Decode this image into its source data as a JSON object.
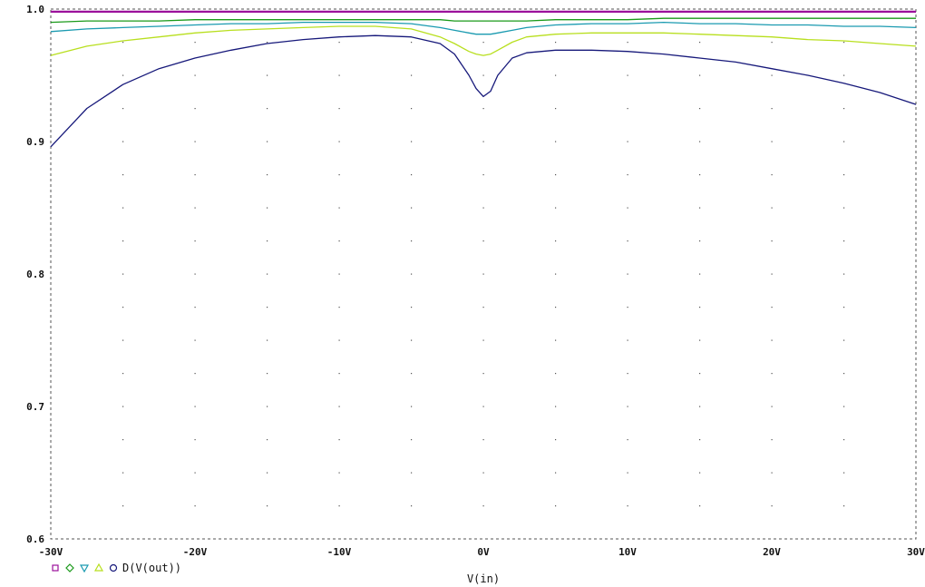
{
  "chart_data": {
    "type": "line",
    "xlabel": "V(in)",
    "ylabel": "",
    "title": "",
    "xlim": [
      -30,
      30
    ],
    "ylim": [
      0.6,
      1.0
    ],
    "x_ticks": [
      {
        "value": -30,
        "label": "-30V"
      },
      {
        "value": -20,
        "label": "-20V"
      },
      {
        "value": -10,
        "label": "-10V"
      },
      {
        "value": 0,
        "label": "0V"
      },
      {
        "value": 10,
        "label": "10V"
      },
      {
        "value": 20,
        "label": "20V"
      },
      {
        "value": 30,
        "label": "30V"
      }
    ],
    "y_ticks": [
      {
        "value": 0.6,
        "label": "0.6"
      },
      {
        "value": 0.7,
        "label": "0.7"
      },
      {
        "value": 0.8,
        "label": "0.8"
      },
      {
        "value": 0.9,
        "label": "0.9"
      },
      {
        "value": 1.0,
        "label": "1.0"
      }
    ],
    "grid": "dotted",
    "legend": {
      "placement": "bottom-left",
      "markers": [
        "square",
        "diamond",
        "triangle-down",
        "triangle-up",
        "circle"
      ],
      "label": "D(V(out))"
    },
    "x": [
      -30,
      -27.5,
      -25,
      -22.5,
      -20,
      -17.5,
      -15,
      -12.5,
      -10,
      -7.5,
      -5,
      -3,
      -2,
      -1,
      -0.5,
      0,
      0.5,
      1,
      2,
      3,
      5,
      7.5,
      10,
      12.5,
      15,
      17.5,
      20,
      22.5,
      25,
      27.5,
      30
    ],
    "series": [
      {
        "color": "#9b109b",
        "values": [
          0.998,
          0.998,
          0.998,
          0.998,
          0.998,
          0.998,
          0.998,
          0.998,
          0.998,
          0.998,
          0.998,
          0.998,
          0.998,
          0.998,
          0.998,
          0.998,
          0.998,
          0.998,
          0.998,
          0.998,
          0.998,
          0.998,
          0.998,
          0.998,
          0.998,
          0.998,
          0.998,
          0.998,
          0.998,
          0.998,
          0.998
        ]
      },
      {
        "color": "#1a9a1a",
        "values": [
          0.99,
          0.991,
          0.991,
          0.991,
          0.992,
          0.992,
          0.992,
          0.992,
          0.992,
          0.992,
          0.992,
          0.992,
          0.991,
          0.991,
          0.991,
          0.991,
          0.991,
          0.991,
          0.991,
          0.991,
          0.992,
          0.992,
          0.992,
          0.993,
          0.993,
          0.993,
          0.993,
          0.993,
          0.993,
          0.993,
          0.993
        ]
      },
      {
        "color": "#1a9ab0",
        "values": [
          0.983,
          0.985,
          0.986,
          0.987,
          0.988,
          0.989,
          0.989,
          0.99,
          0.99,
          0.99,
          0.989,
          0.986,
          0.984,
          0.982,
          0.981,
          0.981,
          0.981,
          0.982,
          0.984,
          0.986,
          0.988,
          0.989,
          0.989,
          0.99,
          0.989,
          0.989,
          0.988,
          0.988,
          0.987,
          0.987,
          0.986
        ]
      },
      {
        "color": "#b8df1e",
        "values": [
          0.965,
          0.972,
          0.976,
          0.979,
          0.982,
          0.984,
          0.985,
          0.986,
          0.987,
          0.987,
          0.985,
          0.979,
          0.974,
          0.968,
          0.966,
          0.965,
          0.966,
          0.969,
          0.975,
          0.979,
          0.981,
          0.982,
          0.982,
          0.982,
          0.981,
          0.98,
          0.979,
          0.977,
          0.976,
          0.974,
          0.972
        ]
      },
      {
        "color": "#16187a",
        "values": [
          0.896,
          0.925,
          0.943,
          0.955,
          0.963,
          0.969,
          0.974,
          0.977,
          0.979,
          0.98,
          0.979,
          0.974,
          0.966,
          0.95,
          0.94,
          0.934,
          0.938,
          0.95,
          0.963,
          0.967,
          0.969,
          0.969,
          0.968,
          0.966,
          0.963,
          0.96,
          0.955,
          0.95,
          0.944,
          0.937,
          0.928
        ]
      }
    ]
  }
}
